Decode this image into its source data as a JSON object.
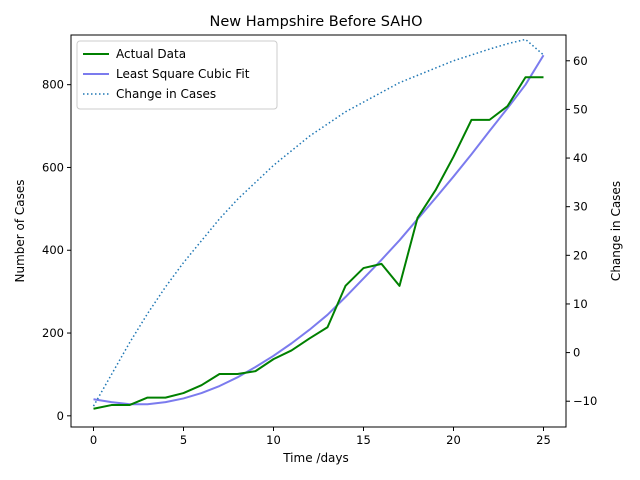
{
  "chart_data": {
    "type": "line",
    "title": "New Hampshire Before SAHO",
    "xlabel": "Time /days",
    "ylabel": "Number of Cases",
    "y2label": "Change in Cases",
    "xlim": [
      -1.25,
      26.25
    ],
    "ylim": [
      -27,
      920
    ],
    "y2lim": [
      -15.3,
      65.3
    ],
    "xticks": [
      0,
      5,
      10,
      15,
      20,
      25
    ],
    "yticks": [
      0,
      200,
      400,
      600,
      800
    ],
    "y2ticks": [
      -10,
      0,
      10,
      20,
      30,
      40,
      50,
      60
    ],
    "grid": false,
    "legend": "top-left",
    "x": [
      0,
      1,
      2,
      3,
      4,
      5,
      6,
      7,
      8,
      9,
      10,
      11,
      12,
      13,
      14,
      15,
      16,
      17,
      18,
      19,
      20,
      21,
      22,
      23,
      24,
      25
    ],
    "series": [
      {
        "name": "Actual Data",
        "axis": "left",
        "color": "#008000",
        "style": "solid",
        "values": [
          17,
          26,
          26,
          44,
          44,
          55,
          74,
          101,
          101,
          108,
          137,
          158,
          187,
          214,
          314,
          357,
          367,
          314,
          478,
          545,
          626,
          715,
          715,
          748,
          818,
          818
        ]
      },
      {
        "name": "Least Square Cubic Fit",
        "axis": "left",
        "color": "#7b7bee",
        "style": "solid",
        "values": [
          40,
          33,
          28,
          28,
          33,
          42,
          55,
          72,
          93,
          118,
          145,
          175,
          208,
          244,
          287,
          332,
          377,
          424,
          475,
          526,
          578,
          632,
          688,
          743,
          800,
          871
        ]
      },
      {
        "name": "Change in Cases",
        "axis": "right",
        "color": "#1f77b4",
        "style": "dotted",
        "values": [
          -11,
          -4.5,
          2,
          8,
          13.5,
          18.5,
          23,
          27.5,
          31.5,
          35,
          38.5,
          41.5,
          44.5,
          47,
          49.5,
          51.5,
          53.5,
          55.5,
          57,
          58.5,
          60,
          61.2,
          62.4,
          63.5,
          64.4,
          61.2
        ]
      }
    ]
  }
}
